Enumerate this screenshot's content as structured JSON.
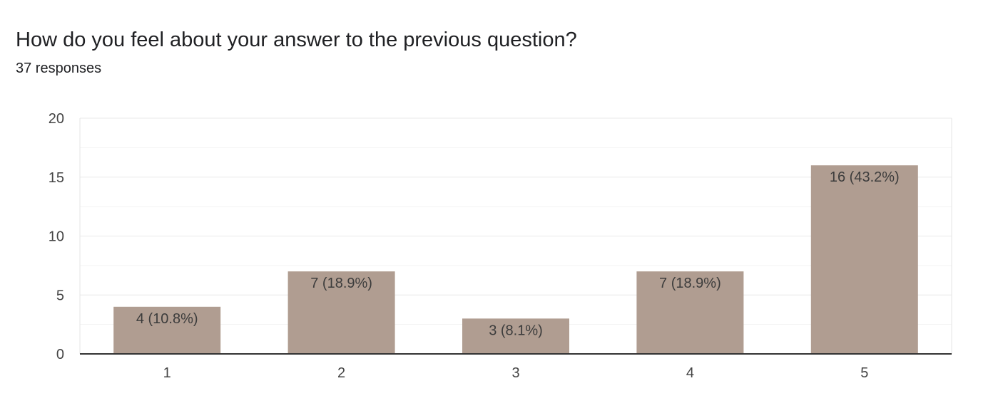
{
  "question": {
    "title": "How do you feel about your answer to the previous question?",
    "responses_label": "37 responses"
  },
  "colors": {
    "bar": "#b09d91",
    "axis": "#333333",
    "major_grid": "#e8e8e8",
    "minor_grid": "#f3f3f3",
    "frame": "#e4e4e4"
  },
  "chart_data": {
    "type": "bar",
    "title": "How do you feel about your answer to the previous question?",
    "subtitle": "37 responses",
    "xlabel": "",
    "ylabel": "",
    "categories": [
      "1",
      "2",
      "3",
      "4",
      "5"
    ],
    "values": [
      4,
      7,
      3,
      7,
      16
    ],
    "data_labels": [
      "4 (10.8%)",
      "7 (18.9%)",
      "3 (8.1%)",
      "7 (18.9%)",
      "16 (43.2%)"
    ],
    "ylim": [
      0,
      20
    ],
    "yticks": [
      "0",
      "5",
      "10",
      "15",
      "20"
    ],
    "grid": true,
    "legend": "none"
  }
}
